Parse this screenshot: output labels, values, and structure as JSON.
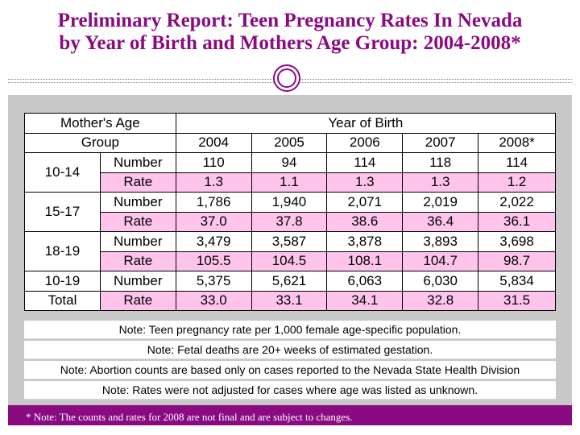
{
  "title": {
    "line1": "Preliminary Report: Teen Pregnancy Rates In Nevada",
    "line2": "by Year of Birth and Mothers Age Group: 2004-2008*"
  },
  "table": {
    "header_age": "Mother's Age",
    "header_group": "Group",
    "header_year": "Year of Birth",
    "years": [
      "2004",
      "2005",
      "2006",
      "2007",
      "2008*"
    ],
    "groups": [
      {
        "label": "10-14",
        "number_label": "Number",
        "rate_label": "Rate",
        "numbers": [
          "110",
          "94",
          "114",
          "118",
          "114"
        ],
        "rates": [
          "1.3",
          "1.1",
          "1.3",
          "1.3",
          "1.2"
        ]
      },
      {
        "label": "15-17",
        "number_label": "Number",
        "rate_label": "Rate",
        "numbers": [
          "1,786",
          "1,940",
          "2,071",
          "2,019",
          "2,022"
        ],
        "rates": [
          "37.0",
          "37.8",
          "38.6",
          "36.4",
          "36.1"
        ]
      },
      {
        "label": "18-19",
        "number_label": "Number",
        "rate_label": "Rate",
        "numbers": [
          "3,479",
          "3,587",
          "3,878",
          "3,893",
          "3,698"
        ],
        "rates": [
          "105.5",
          "104.5",
          "108.1",
          "104.7",
          "98.7"
        ]
      }
    ],
    "total": {
      "label1": "10-19",
      "label2": "Total",
      "number_label": "Number",
      "rate_label": "Rate",
      "numbers": [
        "5,375",
        "5,621",
        "6,063",
        "6,030",
        "5,834"
      ],
      "rates": [
        "33.0",
        "33.1",
        "34.1",
        "32.8",
        "31.5"
      ]
    }
  },
  "notes": [
    "Note: Teen pregnancy rate per 1,000 female age-specific population.",
    "Note: Fetal deaths are 20+ weeks of estimated gestation.",
    "Note: Abortion counts are based only on cases reported to the Nevada State Health Division",
    "Note: Rates were not adjusted for cases where age was listed as unknown."
  ],
  "footer": "* Note: The counts and rates for 2008 are not final and are subject to changes.",
  "colors": {
    "accent": "#8a0a82",
    "rate_highlight": "#ffc4ec",
    "panel": "#c8c8c8"
  }
}
